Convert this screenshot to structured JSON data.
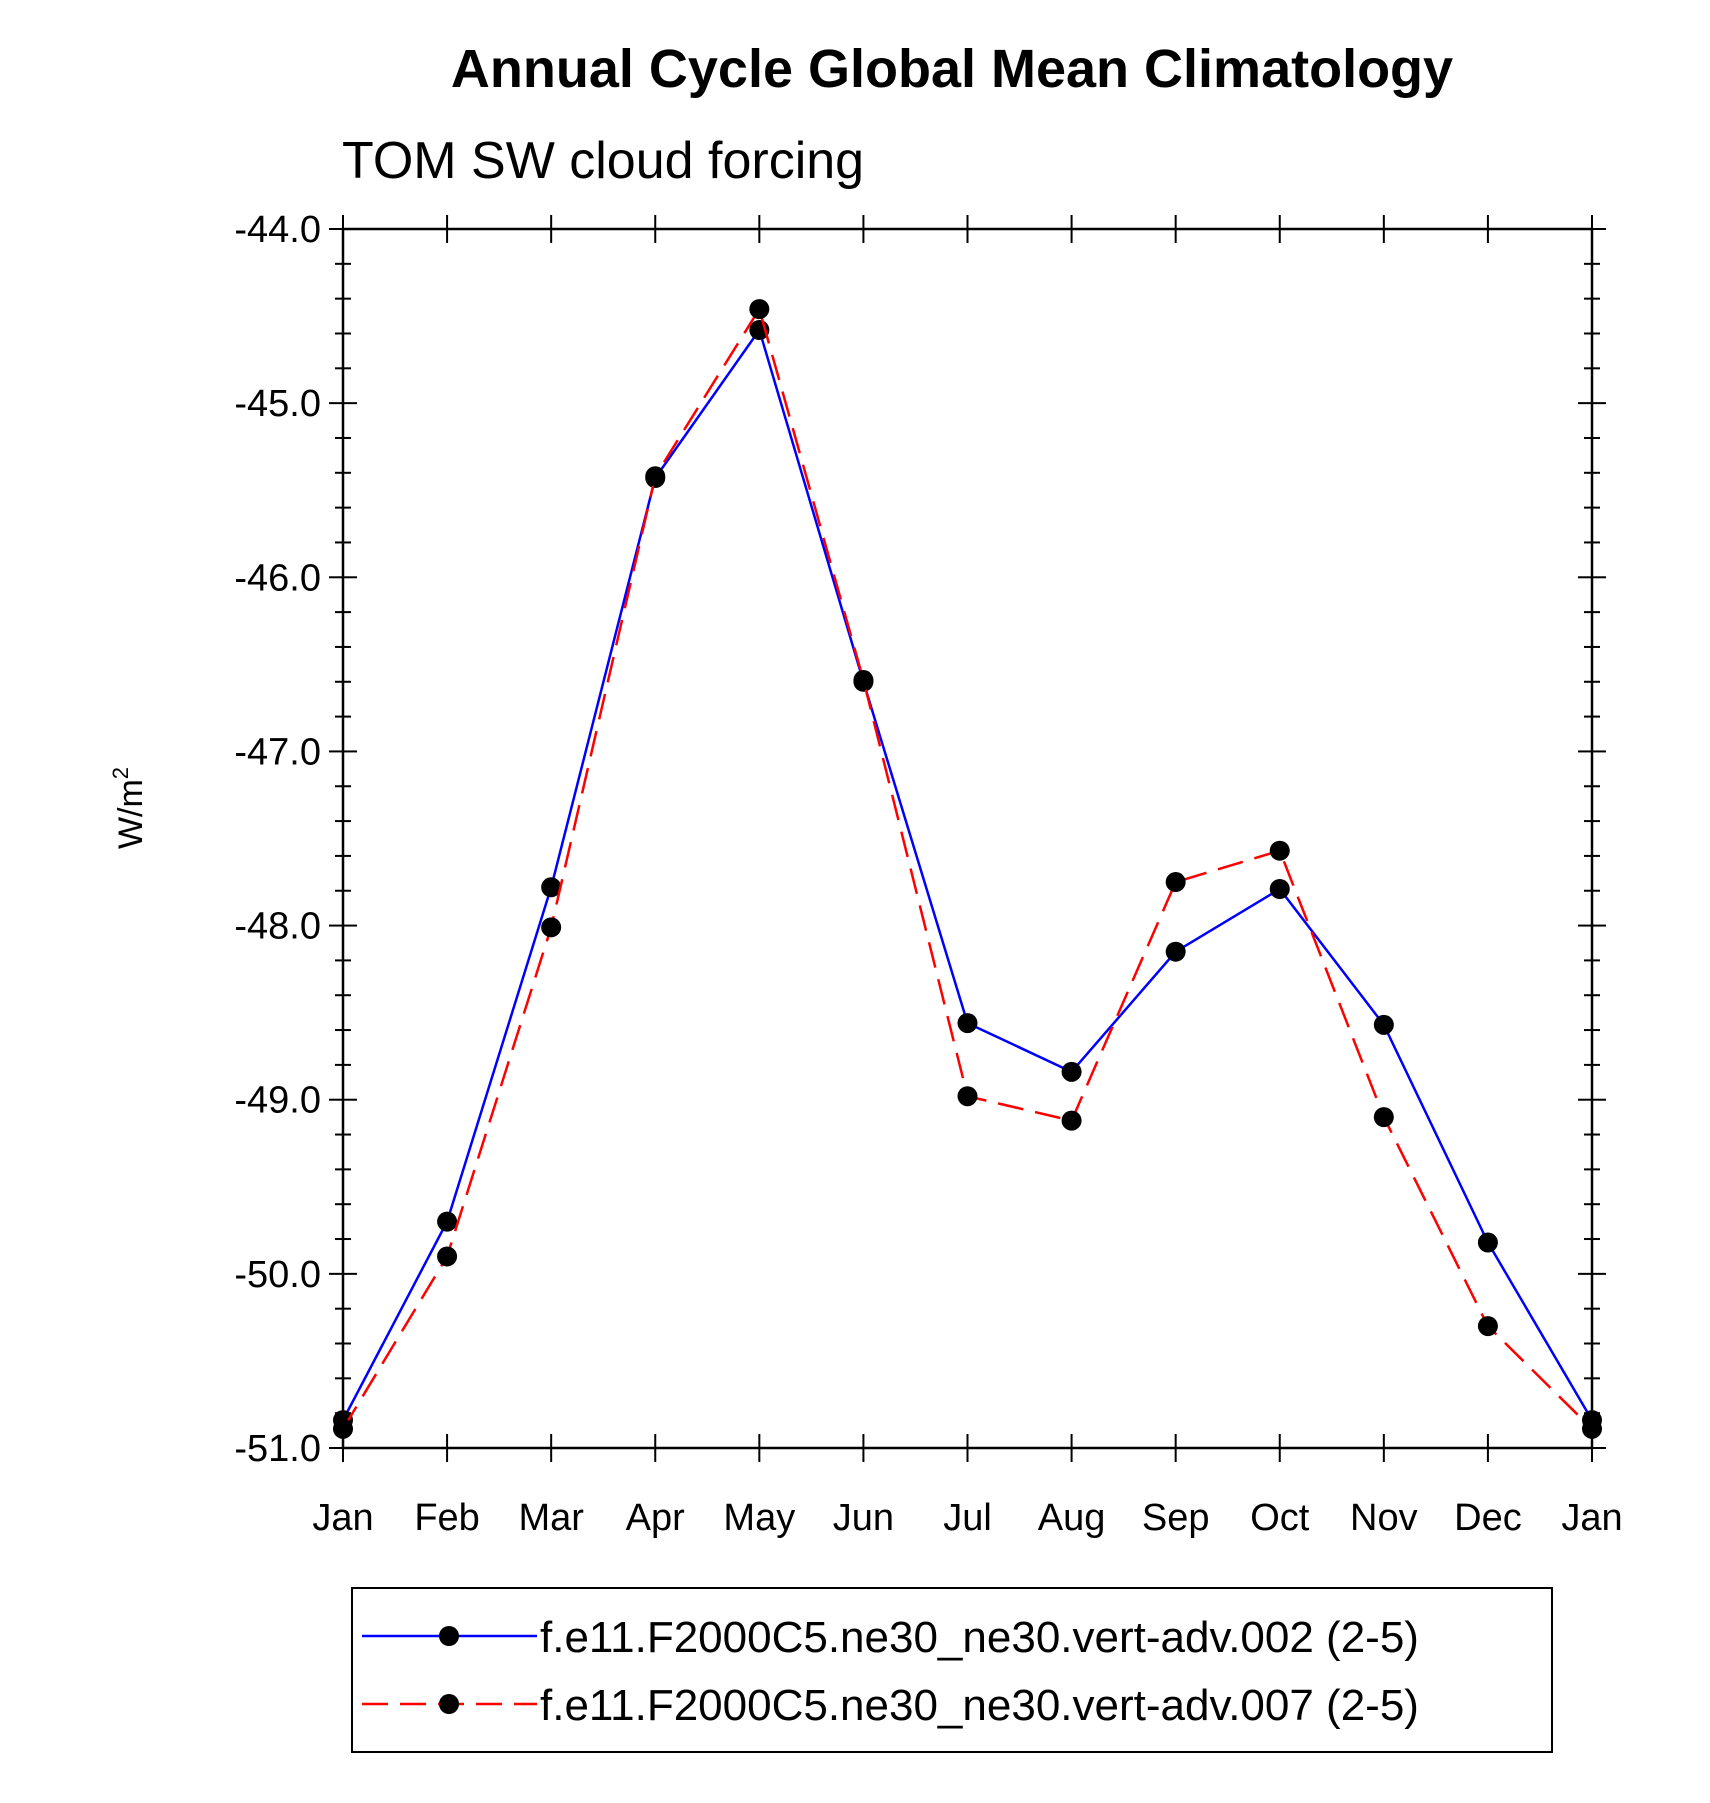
{
  "chart_data": {
    "type": "line",
    "title": "Annual Cycle Global Mean Climatology",
    "subtitle": "TOM SW cloud forcing",
    "ylabel_base": "W/m",
    "ylabel_sup": "2",
    "xlabel": "",
    "categories": [
      "Jan",
      "Feb",
      "Mar",
      "Apr",
      "May",
      "Jun",
      "Jul",
      "Aug",
      "Sep",
      "Oct",
      "Nov",
      "Dec",
      "Jan"
    ],
    "ylim": [
      -51.0,
      -44.0
    ],
    "yticks": [
      -44.0,
      -45.0,
      -46.0,
      -47.0,
      -48.0,
      -49.0,
      -50.0,
      -51.0
    ],
    "ytick_labels": [
      "-44.0",
      "-45.0",
      "-46.0",
      "-47.0",
      "-48.0",
      "-49.0",
      "-50.0",
      "-51.0"
    ],
    "series": [
      {
        "name": "f.e11.F2000C5.ne30_ne30.vert-adv.002 (2-5)",
        "color": "#0000ff",
        "dash": "solid",
        "values": [
          -50.84,
          -49.7,
          -47.78,
          -45.43,
          -44.58,
          -46.6,
          -48.56,
          -48.84,
          -48.15,
          -47.79,
          -48.57,
          -49.82,
          -50.84
        ]
      },
      {
        "name": "f.e11.F2000C5.ne30_ne30.vert-adv.007 (2-5)",
        "color": "#ff0000",
        "dash": "dashed",
        "values": [
          -50.89,
          -49.9,
          -48.01,
          -45.42,
          -44.46,
          -46.59,
          -48.98,
          -49.12,
          -47.75,
          -47.57,
          -49.1,
          -50.3,
          -50.89
        ]
      }
    ],
    "legend_position": "bottom"
  }
}
